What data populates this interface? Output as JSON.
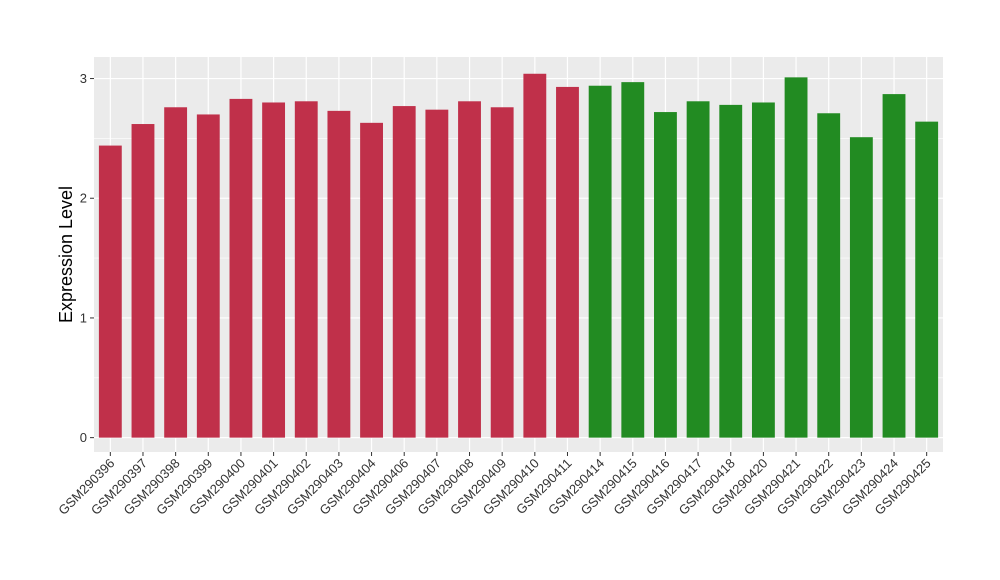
{
  "chart_data": {
    "type": "bar",
    "title": "",
    "xlabel": "",
    "ylabel": "Expression Level",
    "ylim": [
      -0.12,
      3.18
    ],
    "yticks": [
      0,
      1,
      2,
      3
    ],
    "grid": true,
    "legend": "none",
    "categories": [
      "GSM290396",
      "GSM290397",
      "GSM290398",
      "GSM290399",
      "GSM290400",
      "GSM290401",
      "GSM290402",
      "GSM290403",
      "GSM290404",
      "GSM290406",
      "GSM290407",
      "GSM290408",
      "GSM290409",
      "GSM290410",
      "GSM290411",
      "GSM290414",
      "GSM290415",
      "GSM290416",
      "GSM290417",
      "GSM290418",
      "GSM290420",
      "GSM290421",
      "GSM290422",
      "GSM290423",
      "GSM290424",
      "GSM290425"
    ],
    "values": [
      2.44,
      2.62,
      2.76,
      2.7,
      2.83,
      2.8,
      2.81,
      2.73,
      2.63,
      2.77,
      2.74,
      2.81,
      2.76,
      3.04,
      2.93,
      2.94,
      2.97,
      2.72,
      2.81,
      2.78,
      2.8,
      3.01,
      2.71,
      2.51,
      2.87,
      2.64
    ],
    "groups": [
      "a",
      "a",
      "a",
      "a",
      "a",
      "a",
      "a",
      "a",
      "a",
      "a",
      "a",
      "a",
      "a",
      "a",
      "a",
      "b",
      "b",
      "b",
      "b",
      "b",
      "b",
      "b",
      "b",
      "b",
      "b",
      "b"
    ],
    "colors": {
      "a": "#c0304a",
      "b": "#228b22"
    },
    "panel_background": "#ebebeb",
    "grid_color": "#ffffff"
  }
}
